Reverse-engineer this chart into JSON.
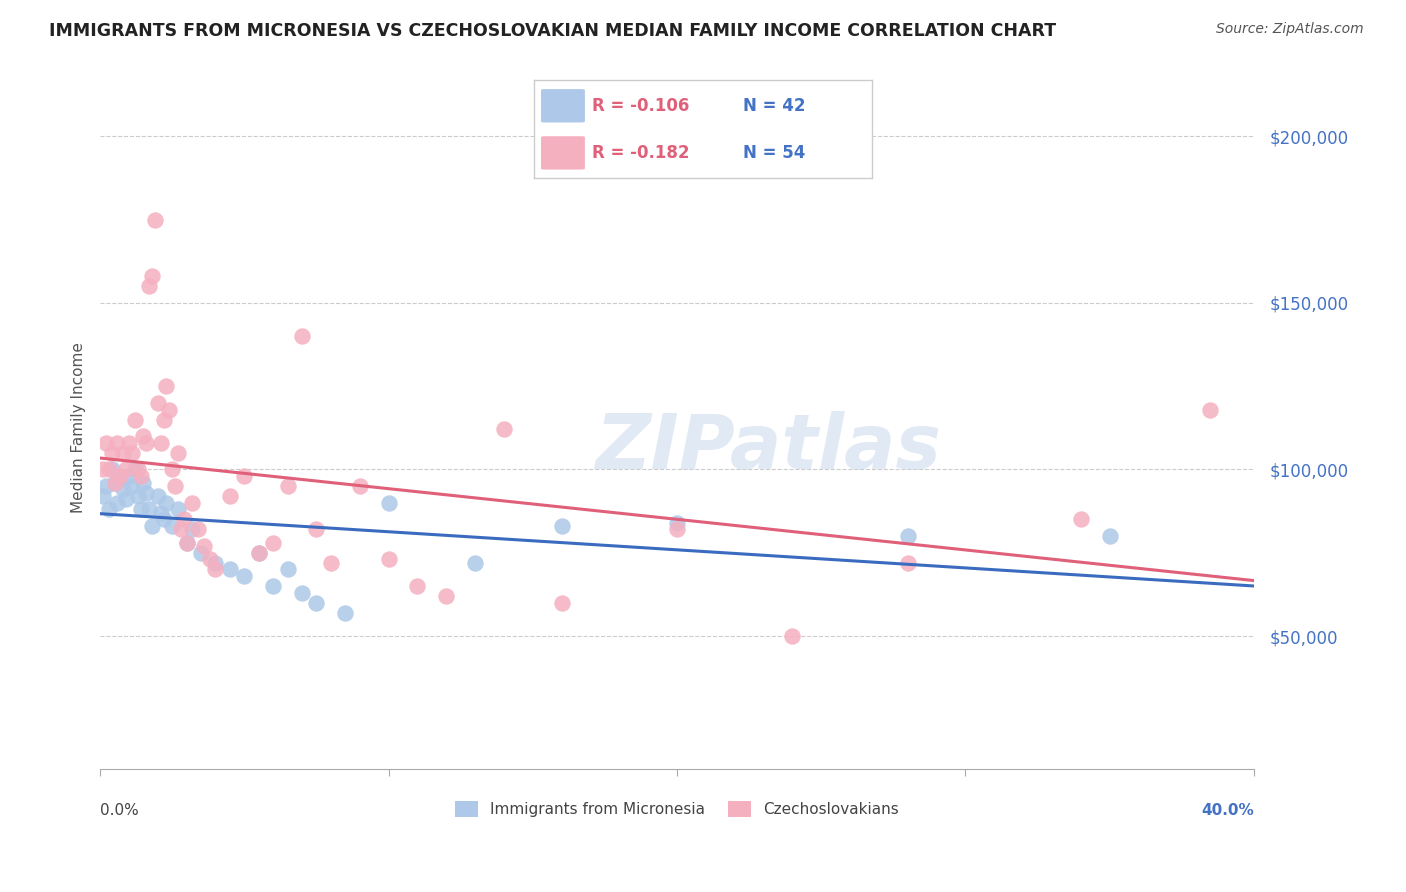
{
  "title": "IMMIGRANTS FROM MICRONESIA VS CZECHOSLOVAKIAN MEDIAN FAMILY INCOME CORRELATION CHART",
  "source": "Source: ZipAtlas.com",
  "ylabel": "Median Family Income",
  "yticks": [
    50000,
    100000,
    150000,
    200000
  ],
  "ytick_labels": [
    "$50,000",
    "$100,000",
    "$150,000",
    "$200,000"
  ],
  "xmin": 0.0,
  "xmax": 40.0,
  "ymin": 10000,
  "ymax": 215000,
  "series1_label": "Immigrants from Micronesia",
  "series1_color": "#adc8e8",
  "series1_line_color": "#3a6bbf",
  "series1_R": "-0.106",
  "series1_N": "42",
  "series2_label": "Czechoslovakians",
  "series2_color": "#f5b0c0",
  "series2_line_color": "#e0607a",
  "series2_R": "-0.182",
  "series2_N": "54",
  "watermark": "ZIPatlas",
  "background_color": "#ffffff",
  "grid_color": "#cccccc",
  "title_color": "#222222",
  "source_color": "#555555",
  "ylabel_color": "#555555",
  "tick_label_color": "#4472c4",
  "legend_R_color": "#e0607a",
  "legend_N_color": "#4472c4",
  "series1_x": [
    0.1,
    0.2,
    0.3,
    0.4,
    0.5,
    0.6,
    0.7,
    0.8,
    0.9,
    1.0,
    1.1,
    1.2,
    1.3,
    1.4,
    1.5,
    1.6,
    1.7,
    1.8,
    2.0,
    2.1,
    2.2,
    2.3,
    2.5,
    2.7,
    3.0,
    3.2,
    3.5,
    4.0,
    4.5,
    5.0,
    5.5,
    6.0,
    6.5,
    7.0,
    7.5,
    8.5,
    10.0,
    13.0,
    16.0,
    20.0,
    28.0,
    35.0
  ],
  "series1_y": [
    92000,
    95000,
    88000,
    100000,
    96000,
    90000,
    97000,
    94000,
    91000,
    98000,
    95000,
    100000,
    92000,
    88000,
    96000,
    93000,
    88000,
    83000,
    92000,
    87000,
    85000,
    90000,
    83000,
    88000,
    78000,
    82000,
    75000,
    72000,
    70000,
    68000,
    75000,
    65000,
    70000,
    63000,
    60000,
    57000,
    90000,
    72000,
    83000,
    84000,
    80000,
    80000
  ],
  "series2_x": [
    0.1,
    0.2,
    0.3,
    0.4,
    0.5,
    0.6,
    0.7,
    0.8,
    0.9,
    1.0,
    1.1,
    1.2,
    1.3,
    1.4,
    1.5,
    1.6,
    1.7,
    1.8,
    1.9,
    2.0,
    2.1,
    2.2,
    2.3,
    2.4,
    2.5,
    2.6,
    2.7,
    2.8,
    2.9,
    3.0,
    3.2,
    3.4,
    3.6,
    3.8,
    4.0,
    4.5,
    5.0,
    5.5,
    6.0,
    6.5,
    7.0,
    7.5,
    8.0,
    9.0,
    10.0,
    11.0,
    12.0,
    14.0,
    16.0,
    20.0,
    24.0,
    28.0,
    34.0,
    38.5
  ],
  "series2_y": [
    100000,
    108000,
    100000,
    105000,
    96000,
    108000,
    98000,
    105000,
    100000,
    108000,
    105000,
    115000,
    100000,
    98000,
    110000,
    108000,
    155000,
    158000,
    175000,
    120000,
    108000,
    115000,
    125000,
    118000,
    100000,
    95000,
    105000,
    82000,
    85000,
    78000,
    90000,
    82000,
    77000,
    73000,
    70000,
    92000,
    98000,
    75000,
    78000,
    95000,
    140000,
    82000,
    72000,
    95000,
    73000,
    65000,
    62000,
    112000,
    60000,
    82000,
    50000,
    72000,
    85000,
    118000
  ]
}
